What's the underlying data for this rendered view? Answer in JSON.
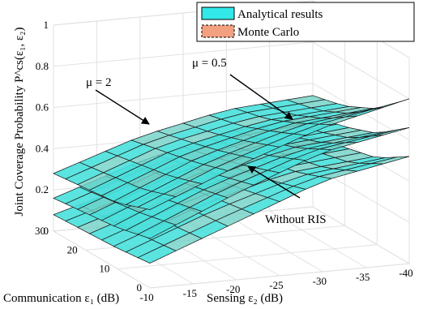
{
  "chart_data": {
    "type": "surface3d",
    "title": "",
    "x_axis": {
      "label": "Sensing ε₂ (dB)",
      "ticks": [
        -10,
        -15,
        -20,
        -25,
        -30,
        -35,
        -40
      ],
      "range": [
        -10,
        -40
      ]
    },
    "y_axis": {
      "label": "Communication ε₁ (dB)",
      "ticks": [
        0,
        10,
        20,
        30
      ],
      "range": [
        0,
        30
      ]
    },
    "z_axis": {
      "label": "Joint Coverage Probability P^cs(ε₁, ε₂)",
      "ticks": [
        0,
        0.2,
        0.4,
        0.6,
        0.8,
        1
      ],
      "range": [
        0,
        1
      ]
    },
    "legend": {
      "placement": "top-right",
      "entries": [
        {
          "label": "Analytical results",
          "color": "#33e8e8",
          "style": "solid"
        },
        {
          "label": "Monte Carlo",
          "color": "#f2a080",
          "style": "dashed"
        }
      ]
    },
    "annotations": [
      {
        "text": "μ = 2"
      },
      {
        "text": "μ = 0.5"
      },
      {
        "text": "Without RIS"
      }
    ],
    "grid": true,
    "series": [
      {
        "name": "μ = 2",
        "eps1": [
          0,
          10,
          20,
          30
        ],
        "eps2": [
          -10,
          -20,
          -30,
          -40
        ],
        "values": [
          [
            0.38,
            0.55,
            0.7,
            0.8
          ],
          [
            0.32,
            0.5,
            0.62,
            0.66
          ],
          [
            0.3,
            0.46,
            0.55,
            0.58
          ],
          [
            0.28,
            0.42,
            0.51,
            0.54
          ]
        ]
      },
      {
        "name": "μ = 0.5",
        "eps1": [
          0,
          10,
          20,
          30
        ],
        "eps2": [
          -10,
          -20,
          -30,
          -40
        ],
        "values": [
          [
            0.24,
            0.42,
            0.58,
            0.66
          ],
          [
            0.2,
            0.38,
            0.5,
            0.54
          ],
          [
            0.18,
            0.34,
            0.44,
            0.48
          ],
          [
            0.16,
            0.3,
            0.4,
            0.44
          ]
        ]
      },
      {
        "name": "Without RIS",
        "eps1": [
          0,
          10,
          20,
          30
        ],
        "eps2": [
          -10,
          -20,
          -30,
          -40
        ],
        "values": [
          [
            0.12,
            0.28,
            0.44,
            0.52
          ],
          [
            0.1,
            0.26,
            0.38,
            0.42
          ],
          [
            0.09,
            0.23,
            0.34,
            0.38
          ],
          [
            0.08,
            0.2,
            0.3,
            0.34
          ]
        ]
      }
    ]
  }
}
